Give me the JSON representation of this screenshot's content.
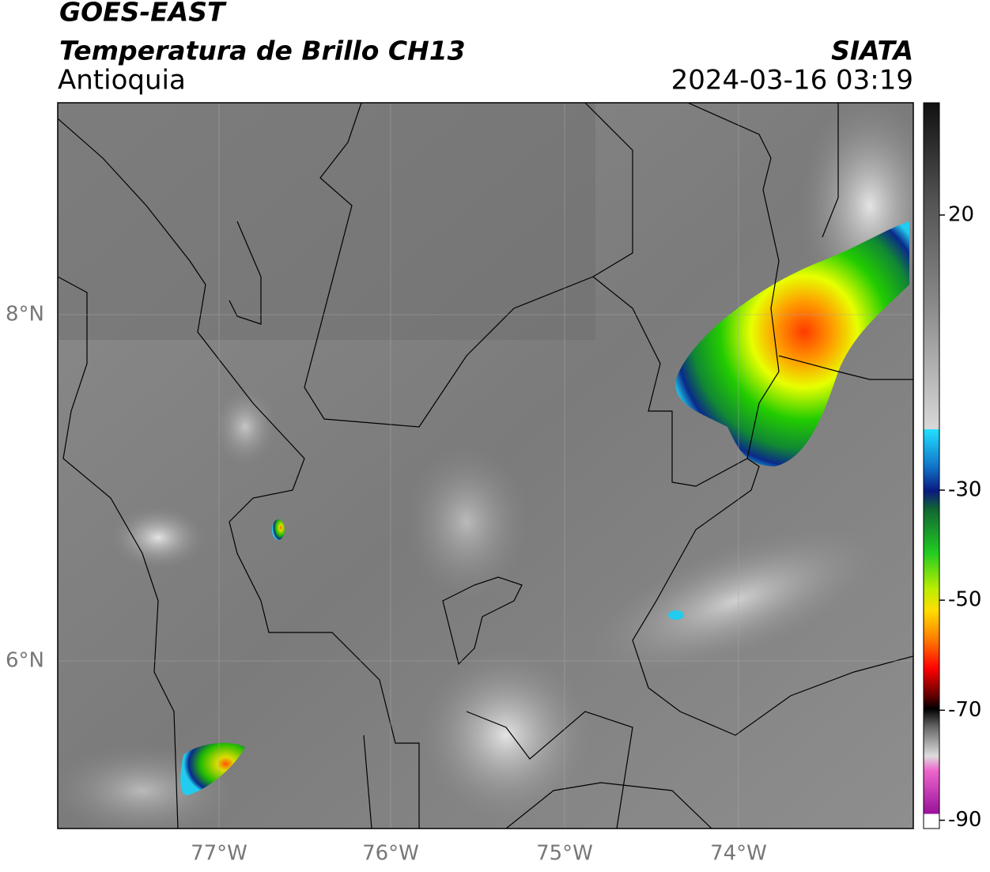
{
  "header": {
    "title": "GOES-EAST",
    "subtitle": "Temperatura de Brillo CH13",
    "region": "Antioquia",
    "source": "SIATA",
    "datetime": "2024-03-16 03:19"
  },
  "map": {
    "lat_labels": [
      "8°N",
      "6°N"
    ],
    "lon_labels": [
      "77°W",
      "76°W",
      "75°W",
      "74°W"
    ]
  },
  "colorbar": {
    "range": [
      -91.5,
      40.4
    ],
    "ticks": [
      20,
      -30,
      -50,
      -70,
      -90
    ]
  }
}
